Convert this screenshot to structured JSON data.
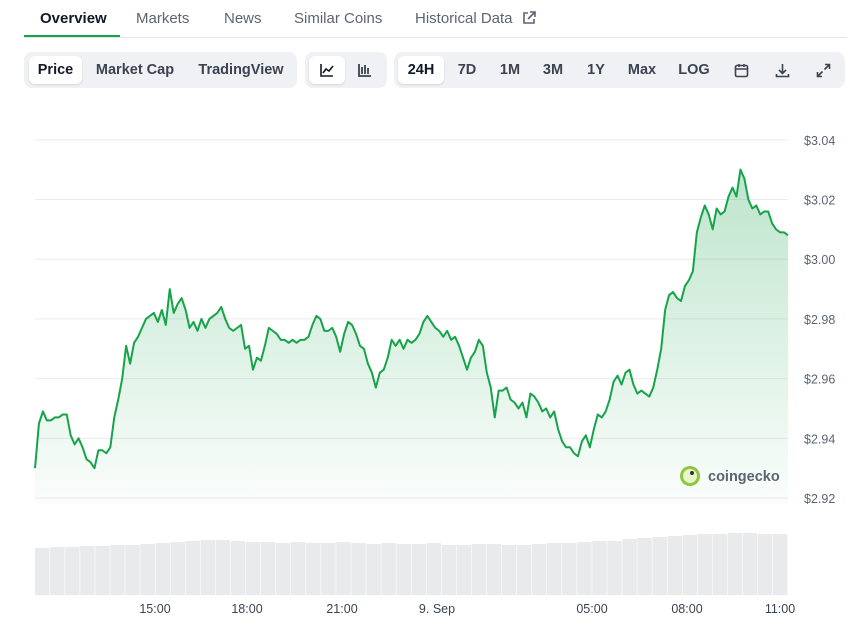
{
  "tabs": [
    "Overview",
    "Markets",
    "News",
    "Similar Coins",
    "Historical Data"
  ],
  "toolbar": {
    "views": [
      "Price",
      "Market Cap",
      "TradingView"
    ],
    "ranges": [
      "24H",
      "7D",
      "1M",
      "3M",
      "1Y",
      "Max",
      "LOG"
    ]
  },
  "chart_data": {
    "type": "line",
    "watermark": "coingecko",
    "x_labels": [
      "15:00",
      "18:00",
      "21:00",
      "9. Sep",
      "05:00",
      "08:00",
      "11:00"
    ],
    "series": [
      {
        "color": "#16a34a",
        "values": [
          2.93,
          2.945,
          2.949,
          2.946,
          2.946,
          2.947,
          2.947,
          2.948,
          2.948,
          2.941,
          2.938,
          2.94,
          2.937,
          2.933,
          2.932,
          2.93,
          2.936,
          2.936,
          2.935,
          2.937,
          2.947,
          2.953,
          2.96,
          2.971,
          2.965,
          2.972,
          2.974,
          2.977,
          2.98,
          2.981,
          2.982,
          2.979,
          2.983,
          2.978,
          2.99,
          2.982,
          2.985,
          2.987,
          2.983,
          2.977,
          2.979,
          2.976,
          2.98,
          2.977,
          2.98,
          2.981,
          2.982,
          2.984,
          2.98,
          2.977,
          2.976,
          2.977,
          2.978,
          2.97,
          2.971,
          2.963,
          2.967,
          2.966,
          2.971,
          2.977,
          2.976,
          2.975,
          2.973,
          2.973,
          2.972,
          2.973,
          2.972,
          2.973,
          2.973,
          2.974,
          2.978,
          2.981,
          2.98,
          2.976,
          2.976,
          2.977,
          2.974,
          2.969,
          2.975,
          2.979,
          2.978,
          2.975,
          2.971,
          2.97,
          2.965,
          2.962,
          2.957,
          2.962,
          2.963,
          2.967,
          2.973,
          2.971,
          2.973,
          2.97,
          2.973,
          2.972,
          2.973,
          2.975,
          2.979,
          2.981,
          2.979,
          2.977,
          2.976,
          2.974,
          2.976,
          2.973,
          2.974,
          2.971,
          2.967,
          2.963,
          2.967,
          2.969,
          2.973,
          2.971,
          2.962,
          2.957,
          2.947,
          2.956,
          2.956,
          2.957,
          2.953,
          2.952,
          2.95,
          2.952,
          2.947,
          2.955,
          2.954,
          2.952,
          2.949,
          2.95,
          2.947,
          2.949,
          2.943,
          2.939,
          2.937,
          2.937,
          2.935,
          2.934,
          2.939,
          2.941,
          2.937,
          2.943,
          2.948,
          2.947,
          2.949,
          2.953,
          2.959,
          2.961,
          2.958,
          2.962,
          2.963,
          2.958,
          2.955,
          2.956,
          2.955,
          2.954,
          2.957,
          2.963,
          2.97,
          2.983,
          2.988,
          2.989,
          2.987,
          2.986,
          2.991,
          2.993,
          2.996,
          3.009,
          3.014,
          3.018,
          3.015,
          3.01,
          3.017,
          3.015,
          3.016,
          3.021,
          3.024,
          3.021,
          3.03,
          3.027,
          3.02,
          3.017,
          3.018,
          3.015,
          3.016,
          3.016,
          3.012,
          3.01,
          3.009,
          3.009,
          3.008
        ]
      }
    ],
    "ylim": [
      2.918,
      3.052
    ],
    "yticks": [
      {
        "value": 2.92,
        "label": "$2.92"
      },
      {
        "value": 2.94,
        "label": "$2.94"
      },
      {
        "value": 2.96,
        "label": "$2.96"
      },
      {
        "value": 2.98,
        "label": "$2.98"
      },
      {
        "value": 3.0,
        "label": "$3.00"
      },
      {
        "value": 3.02,
        "label": "$3.02"
      },
      {
        "value": 3.04,
        "label": "$3.04"
      }
    ],
    "grid": true,
    "volume": [
      47,
      48,
      48,
      49,
      49,
      50,
      50,
      51,
      52,
      53,
      54,
      55,
      55,
      54,
      53,
      53,
      52,
      53,
      52,
      52,
      53,
      52,
      51,
      52,
      51,
      51,
      52,
      50,
      50,
      51,
      51,
      50,
      50,
      51,
      52,
      52,
      53,
      54,
      54,
      56,
      57,
      58,
      59,
      60,
      61,
      61,
      62,
      62,
      61,
      61
    ]
  }
}
